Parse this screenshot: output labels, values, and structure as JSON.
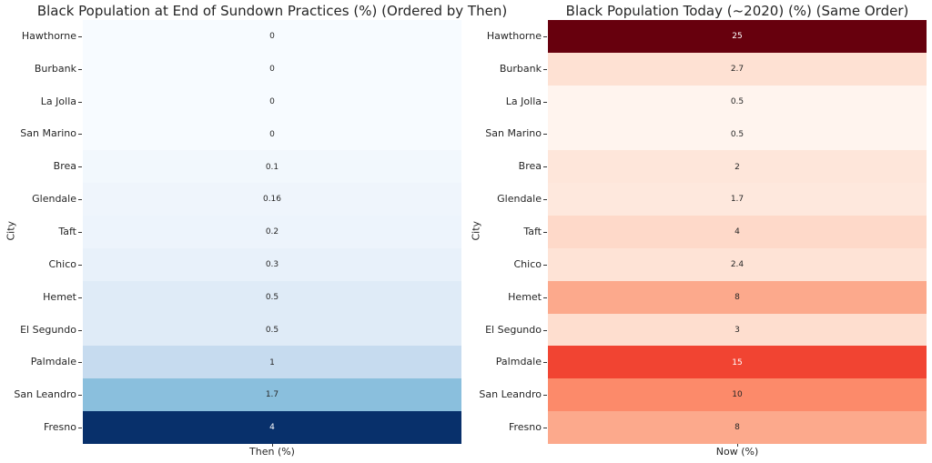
{
  "chart_data": [
    {
      "type": "heatmap",
      "title": "Black Population at End of Sundown Practices (%) (Ordered by Then)",
      "ylabel": "City",
      "xlabel": "Then (%)",
      "colormap": "Blues",
      "cities": [
        "Hawthorne",
        "Burbank",
        "La Jolla",
        "San Marino",
        "Brea",
        "Glendale",
        "Taft",
        "Chico",
        "Hemet",
        "El Segundo",
        "Palmdale",
        "San Leandro",
        "Fresno"
      ],
      "values": [
        0,
        0,
        0,
        0,
        0.1,
        0.16,
        0.2,
        0.3,
        0.5,
        0.5,
        1,
        1.7,
        4
      ],
      "value_labels": [
        "0",
        "0",
        "0",
        "0",
        "0.1",
        "0.16",
        "0.2",
        "0.3",
        "0.5",
        "0.5",
        "1",
        "1.7",
        "4"
      ],
      "colors": [
        "#f7fbff",
        "#f7fbff",
        "#f7fbff",
        "#f7fbff",
        "#f2f8fd",
        "#eff5fc",
        "#edf4fc",
        "#e8f1fa",
        "#dfebf7",
        "#dfebf7",
        "#c6dbef",
        "#8abfdd",
        "#08306b"
      ],
      "text_colors": [
        "#262626",
        "#262626",
        "#262626",
        "#262626",
        "#262626",
        "#262626",
        "#262626",
        "#262626",
        "#262626",
        "#262626",
        "#262626",
        "#262626",
        "#ffffff"
      ]
    },
    {
      "type": "heatmap",
      "title": "Black Population Today (~2020) (%) (Same Order)",
      "ylabel": "City",
      "xlabel": "Now (%)",
      "colormap": "Reds",
      "cities": [
        "Hawthorne",
        "Burbank",
        "La Jolla",
        "San Marino",
        "Brea",
        "Glendale",
        "Taft",
        "Chico",
        "Hemet",
        "El Segundo",
        "Palmdale",
        "San Leandro",
        "Fresno"
      ],
      "values": [
        25,
        2.7,
        0.5,
        0.5,
        2,
        1.7,
        4,
        2.4,
        8,
        3,
        15,
        10,
        8
      ],
      "value_labels": [
        "25",
        "2.7",
        "0.5",
        "0.5",
        "2",
        "1.7",
        "4",
        "2.4",
        "8",
        "3",
        "15",
        "10",
        "8"
      ],
      "colors": [
        "#67000d",
        "#fee1d3",
        "#fff4ee",
        "#fff4ee",
        "#fee6da",
        "#fee8dd",
        "#fed9c9",
        "#fee3d6",
        "#fca98c",
        "#fedecf",
        "#f14432",
        "#fc8a6a",
        "#fca98c"
      ],
      "text_colors": [
        "#ffffff",
        "#262626",
        "#262626",
        "#262626",
        "#262626",
        "#262626",
        "#262626",
        "#262626",
        "#262626",
        "#262626",
        "#ffffff",
        "#262626",
        "#262626"
      ]
    }
  ]
}
